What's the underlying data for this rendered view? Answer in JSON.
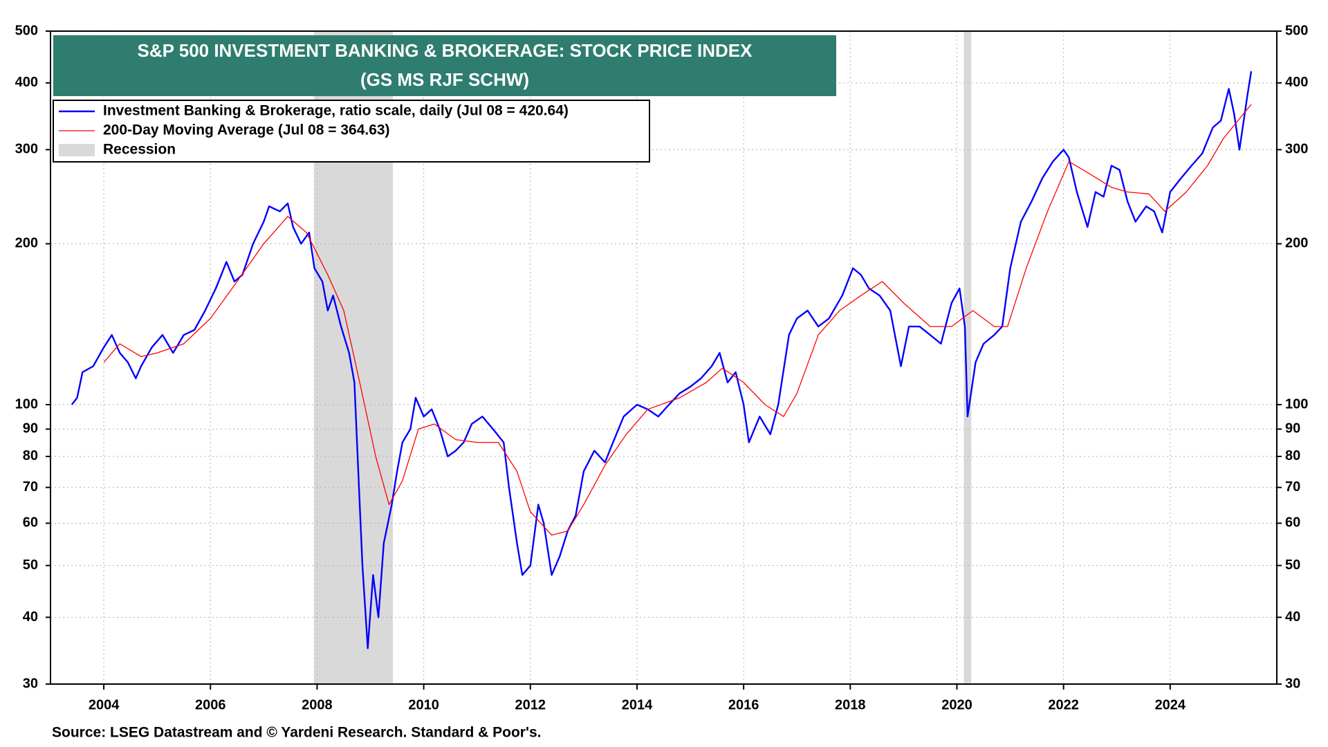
{
  "chart_data": {
    "type": "line",
    "title": "S&P 500 INVESTMENT BANKING & BROKERAGE: STOCK PRICE INDEX",
    "subtitle": "(GS MS RJF SCHW)",
    "source": "Source: LSEG Datastream and © Yardeni Research. Standard & Poor's.",
    "log_scale": true,
    "grid": true,
    "xlim": [
      2003,
      2026
    ],
    "xticks": [
      2004,
      2006,
      2008,
      2010,
      2012,
      2014,
      2016,
      2018,
      2020,
      2022,
      2024
    ],
    "ylim": [
      30,
      500
    ],
    "yticks": [
      30,
      40,
      50,
      60,
      70,
      80,
      90,
      100,
      200,
      300,
      400,
      500
    ],
    "recession": {
      "name": "Recession",
      "color": "#d9d9d9",
      "spans": [
        [
          2007.94,
          2009.42
        ],
        [
          2020.13,
          2020.27
        ]
      ]
    },
    "series": [
      {
        "name": "Investment Banking & Brokerage, ratio scale, daily (Jul 08 = 420.64)",
        "color": "#0000ff",
        "x": [
          2003.4,
          2003.5,
          2003.6,
          2003.8,
          2004.0,
          2004.15,
          2004.3,
          2004.45,
          2004.6,
          2004.7,
          2004.9,
          2005.1,
          2005.3,
          2005.5,
          2005.7,
          2005.9,
          2006.1,
          2006.3,
          2006.45,
          2006.6,
          2006.8,
          2007.0,
          2007.1,
          2007.3,
          2007.45,
          2007.55,
          2007.7,
          2007.85,
          2007.95,
          2008.1,
          2008.2,
          2008.3,
          2008.45,
          2008.6,
          2008.7,
          2008.8,
          2008.85,
          2008.95,
          2009.05,
          2009.15,
          2009.25,
          2009.4,
          2009.5,
          2009.6,
          2009.75,
          2009.85,
          2010.0,
          2010.15,
          2010.3,
          2010.45,
          2010.6,
          2010.75,
          2010.9,
          2011.1,
          2011.3,
          2011.5,
          2011.6,
          2011.75,
          2011.85,
          2012.0,
          2012.15,
          2012.25,
          2012.4,
          2012.55,
          2012.7,
          2012.85,
          2013.0,
          2013.2,
          2013.4,
          2013.55,
          2013.75,
          2014.0,
          2014.2,
          2014.4,
          2014.6,
          2014.8,
          2015.0,
          2015.2,
          2015.4,
          2015.55,
          2015.7,
          2015.85,
          2016.0,
          2016.1,
          2016.3,
          2016.5,
          2016.65,
          2016.85,
          2017.0,
          2017.2,
          2017.4,
          2017.6,
          2017.85,
          2018.05,
          2018.2,
          2018.35,
          2018.55,
          2018.75,
          2018.95,
          2019.1,
          2019.3,
          2019.5,
          2019.7,
          2019.9,
          2020.05,
          2020.15,
          2020.2,
          2020.35,
          2020.5,
          2020.7,
          2020.85,
          2021.0,
          2021.2,
          2021.4,
          2021.6,
          2021.8,
          2022.0,
          2022.1,
          2022.25,
          2022.45,
          2022.6,
          2022.75,
          2022.9,
          2023.05,
          2023.2,
          2023.35,
          2023.55,
          2023.7,
          2023.85,
          2024.0,
          2024.2,
          2024.4,
          2024.6,
          2024.8,
          2024.95,
          2025.1,
          2025.2,
          2025.3,
          2025.45,
          2025.52
        ],
        "values": [
          100,
          103,
          115,
          118,
          128,
          135,
          125,
          120,
          112,
          118,
          128,
          135,
          125,
          135,
          138,
          150,
          165,
          185,
          170,
          175,
          200,
          220,
          235,
          230,
          238,
          215,
          200,
          210,
          180,
          170,
          150,
          160,
          140,
          125,
          110,
          65,
          50,
          35,
          48,
          40,
          55,
          65,
          75,
          85,
          90,
          103,
          95,
          98,
          90,
          80,
          82,
          85,
          92,
          95,
          90,
          85,
          70,
          55,
          48,
          50,
          65,
          60,
          48,
          52,
          58,
          62,
          75,
          82,
          78,
          85,
          95,
          100,
          98,
          95,
          100,
          105,
          108,
          112,
          118,
          125,
          110,
          115,
          100,
          85,
          95,
          88,
          100,
          135,
          145,
          150,
          140,
          145,
          160,
          180,
          175,
          165,
          160,
          150,
          118,
          140,
          140,
          135,
          130,
          155,
          165,
          140,
          95,
          120,
          130,
          135,
          140,
          180,
          220,
          240,
          265,
          285,
          300,
          290,
          250,
          215,
          250,
          245,
          280,
          275,
          240,
          220,
          235,
          230,
          210,
          250,
          265,
          280,
          295,
          330,
          340,
          390,
          350,
          300,
          380,
          420.64
        ]
      },
      {
        "name": "200-Day Moving Average (Jul 08 = 364.63)",
        "color": "#ff0000",
        "x": [
          2004.0,
          2004.3,
          2004.7,
          2005.0,
          2005.5,
          2006.0,
          2006.5,
          2007.0,
          2007.45,
          2007.8,
          2008.2,
          2008.5,
          2008.8,
          2009.1,
          2009.35,
          2009.6,
          2009.9,
          2010.2,
          2010.6,
          2011.0,
          2011.4,
          2011.75,
          2012.0,
          2012.4,
          2012.7,
          2013.0,
          2013.4,
          2013.8,
          2014.2,
          2014.8,
          2015.3,
          2015.6,
          2016.0,
          2016.4,
          2016.75,
          2017.0,
          2017.4,
          2017.8,
          2018.2,
          2018.6,
          2019.0,
          2019.5,
          2019.9,
          2020.3,
          2020.7,
          2020.95,
          2021.3,
          2021.7,
          2022.1,
          2022.5,
          2022.9,
          2023.2,
          2023.6,
          2023.9,
          2024.3,
          2024.7,
          2025.0,
          2025.52
        ],
        "values": [
          120,
          130,
          123,
          125,
          130,
          145,
          170,
          200,
          225,
          210,
          175,
          150,
          110,
          80,
          65,
          72,
          90,
          92,
          86,
          85,
          85,
          75,
          63,
          57,
          58,
          65,
          77,
          88,
          98,
          103,
          110,
          117,
          110,
          100,
          95,
          105,
          135,
          150,
          160,
          170,
          155,
          140,
          140,
          150,
          140,
          140,
          180,
          230,
          285,
          270,
          255,
          250,
          248,
          230,
          250,
          280,
          315,
          364.63
        ]
      }
    ]
  }
}
